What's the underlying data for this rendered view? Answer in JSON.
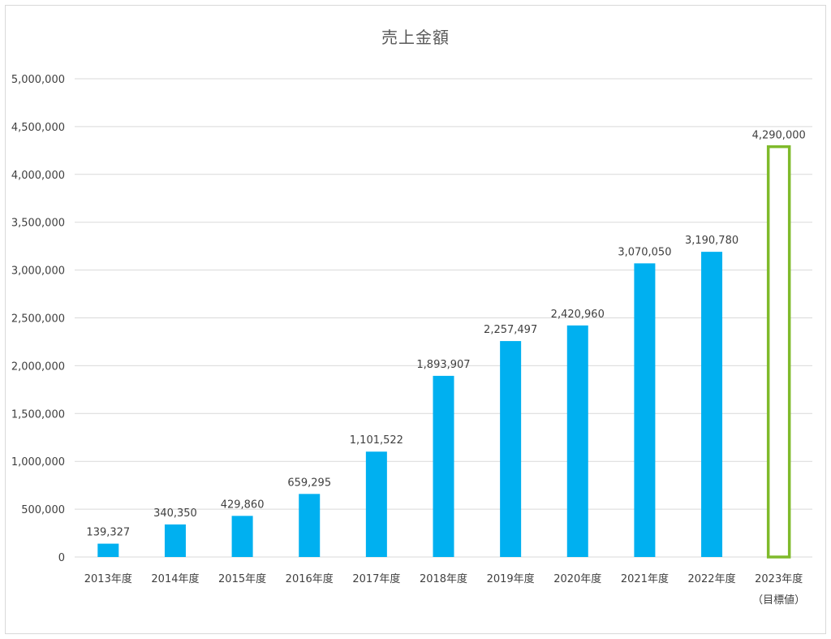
{
  "chart_data": {
    "type": "bar",
    "title": "売上金額",
    "xlabel": "",
    "ylabel": "",
    "ylim": [
      0,
      5000000
    ],
    "ytick_step": 500000,
    "yticks": [
      "0",
      "500,000",
      "1,000,000",
      "1,500,000",
      "2,000,000",
      "2,500,000",
      "3,000,000",
      "3,500,000",
      "4,000,000",
      "4,500,000",
      "5,000,000"
    ],
    "grid": true,
    "legend": "none",
    "categories": [
      {
        "line1": "2013年度",
        "line2": ""
      },
      {
        "line1": "2014年度",
        "line2": ""
      },
      {
        "line1": "2015年度",
        "line2": ""
      },
      {
        "line1": "2016年度",
        "line2": ""
      },
      {
        "line1": "2017年度",
        "line2": ""
      },
      {
        "line1": "2018年度",
        "line2": ""
      },
      {
        "line1": "2019年度",
        "line2": ""
      },
      {
        "line1": "2020年度",
        "line2": ""
      },
      {
        "line1": "2021年度",
        "line2": ""
      },
      {
        "line1": "2022年度",
        "line2": ""
      },
      {
        "line1": "2023年度",
        "line2": "（目標値）"
      }
    ],
    "values": [
      139327,
      340350,
      429860,
      659295,
      1101522,
      1893907,
      2257497,
      2420960,
      3070050,
      3190780,
      4290000
    ],
    "data_labels": [
      "139,327",
      "340,350",
      "429,860",
      "659,295",
      "1,101,522",
      "1,893,907",
      "2,257,497",
      "2,420,960",
      "3,070,050",
      "3,190,780",
      "4,290,000"
    ],
    "target_index": 10,
    "colors": {
      "bar": "#00b0f0",
      "target_outline": "#7fba2b",
      "grid": "#d9d9d9"
    }
  }
}
